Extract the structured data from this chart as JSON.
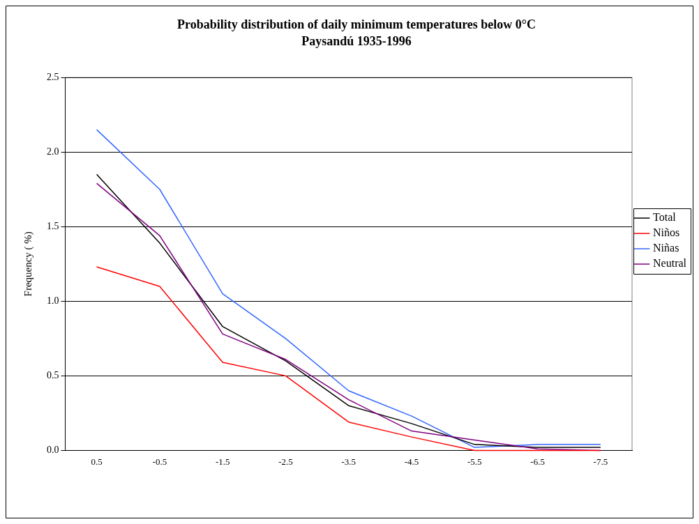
{
  "chart_data": {
    "type": "line",
    "title": "Probability distribution of daily minimum temperatures below 0°C",
    "subtitle": "Paysandú 1935-1996",
    "ylabel": "Frequency ( %)",
    "categories": [
      "0.5",
      "-0.5",
      "-1.5",
      "-2.5",
      "-3.5",
      "-4.5",
      "-5.5",
      "-6.5",
      "-7.5"
    ],
    "series": [
      {
        "name": "Total",
        "color": "#000000",
        "values": [
          1.85,
          1.39,
          0.83,
          0.6,
          0.3,
          0.18,
          0.04,
          0.02,
          0.02
        ]
      },
      {
        "name": "Niños",
        "color": "#ff0000",
        "values": [
          1.23,
          1.1,
          0.59,
          0.5,
          0.19,
          0.09,
          0,
          0,
          0
        ]
      },
      {
        "name": "Niñas",
        "color": "#3366ff",
        "values": [
          2.15,
          1.75,
          1.05,
          0.75,
          0.4,
          0.23,
          0.02,
          0.04,
          0.04
        ]
      },
      {
        "name": "Neutral",
        "color": "#800080",
        "values": [
          1.79,
          1.44,
          0.78,
          0.61,
          0.34,
          0.13,
          0.07,
          0.01,
          0
        ]
      }
    ],
    "ylim": [
      0,
      2.5
    ],
    "yticks": [
      {
        "value": 0,
        "label": "0.0"
      },
      {
        "value": 0.5,
        "label": "0.5"
      },
      {
        "value": 1,
        "label": "1.0"
      },
      {
        "value": 1.5,
        "label": "1.5"
      },
      {
        "value": 2,
        "label": "2.0"
      },
      {
        "value": 2.5,
        "label": "2.5"
      }
    ],
    "grid": "y",
    "legend": "right",
    "marker": "none",
    "line_style": "solid"
  }
}
